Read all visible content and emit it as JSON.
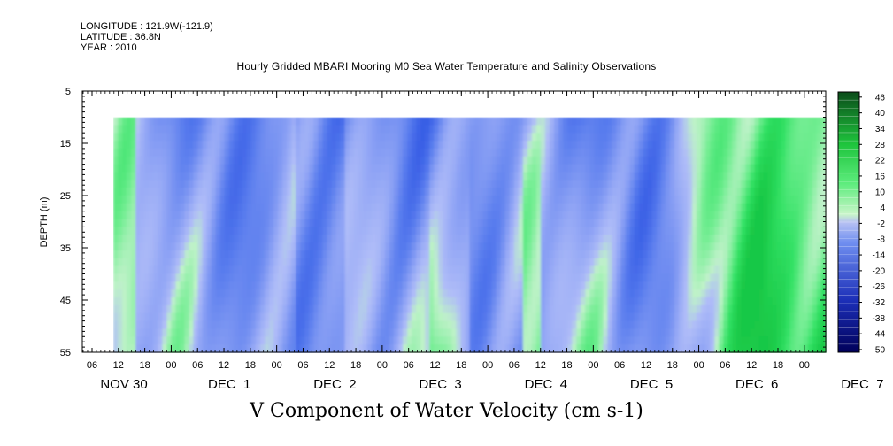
{
  "header": {
    "longitude": "LONGITUDE : 121.9W(-121.9)",
    "latitude": "LATITUDE : 36.8N",
    "year": "YEAR : 2010"
  },
  "chart_data": {
    "type": "heatmap",
    "title": "Hourly Gridded MBARI Mooring M0 Sea Water Temperature and Salinity Observations",
    "xlabel": "V Component of Water Velocity (cm s-1)",
    "ylabel": "DEPTH (m)",
    "y_ticks": [
      "5",
      "15",
      "25",
      "35",
      "45",
      "55"
    ],
    "y_range": [
      5,
      55
    ],
    "y_inverted": true,
    "data_depth_range": [
      10,
      55
    ],
    "x_hour_ticks": [
      "06",
      "12",
      "18",
      "00",
      "06",
      "12",
      "18",
      "00",
      "06",
      "12",
      "18",
      "00",
      "06",
      "12",
      "18",
      "00",
      "06",
      "12",
      "18",
      "00",
      "06",
      "12",
      "18",
      "00",
      "06",
      "12",
      "18",
      "00"
    ],
    "x_day_labels": [
      "NOV 30",
      "DEC  1",
      "DEC  2",
      "DEC  3",
      "DEC  4",
      "DEC  5",
      "DEC  6",
      "DEC  7"
    ],
    "colorbar_labels": [
      "46",
      "40",
      "34",
      "28",
      "22",
      "16",
      "10",
      "4",
      "-2",
      "-8",
      "-14",
      "-20",
      "-26",
      "-32",
      "-38",
      "-44",
      "-50"
    ],
    "colorbar_range": [
      -50,
      46
    ]
  }
}
